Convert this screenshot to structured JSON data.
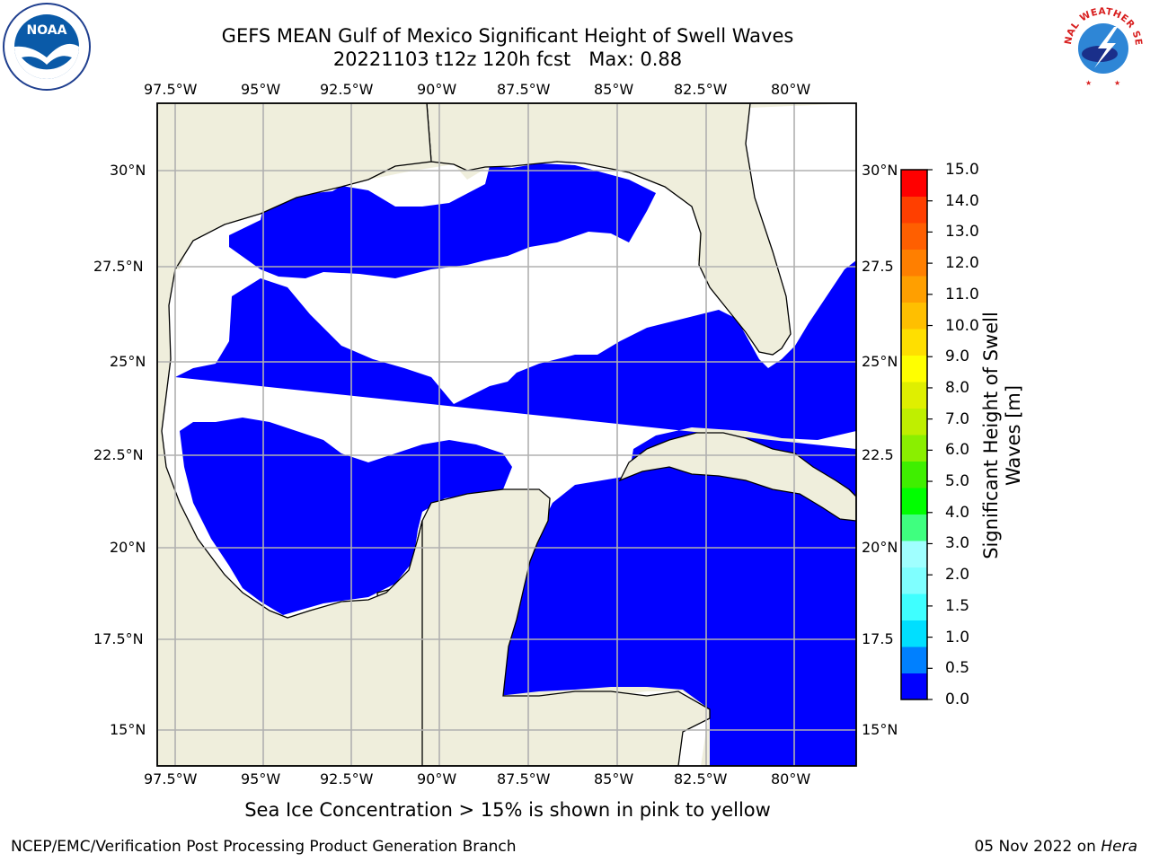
{
  "header": {
    "title": "GEFS MEAN Gulf of Mexico Significant Height of Swell Waves",
    "subtitle": "20221103 t12z 120h fcst   Max: 0.88"
  },
  "logos": {
    "left": {
      "name": "noaa-logo",
      "text": "NOAA",
      "ring_text": "NATIONAL OCEANIC AND ATMOSPHERIC ADMINISTRATION · U.S. DEPARTMENT OF COMMERCE"
    },
    "right": {
      "name": "nws-logo",
      "ring_text": "NATIONAL WEATHER SERVICE"
    }
  },
  "map": {
    "lon_labels": [
      "97.5°W",
      "95°W",
      "92.5°W",
      "90°W",
      "87.5°W",
      "85°W",
      "82.5°W",
      "80°W"
    ],
    "lat_labels": [
      "30°N",
      "27.5°N",
      "25°N",
      "22.5°N",
      "20°N",
      "17.5°N",
      "15°N"
    ],
    "lat_labels_right": [
      "30°N",
      "27.5",
      "25°N",
      "22.5",
      "20°N",
      "17.5",
      "15°N"
    ],
    "land_color": "#efeedc",
    "ocean_color": "#0000ff",
    "no_data_color": "#ffffff"
  },
  "colorbar": {
    "label": "Significant Height of Swell Waves [m]",
    "label_lines": [
      "Significant Height of Swell",
      "Waves [m]"
    ],
    "ticks": [
      "15.0",
      "14.0",
      "13.0",
      "12.0",
      "11.0",
      "10.0",
      "9.0",
      "8.0",
      "7.0",
      "6.0",
      "5.0",
      "4.0",
      "3.0",
      "2.0",
      "1.5",
      "1.0",
      "0.5",
      "0.0"
    ],
    "colors": [
      "#0000ff",
      "#0080ff",
      "#00dfff",
      "#3fffff",
      "#7fffff",
      "#a0ffff",
      "#3fff7f",
      "#00ff00",
      "#3fef00",
      "#8aef00",
      "#bfef00",
      "#dfef00",
      "#ffff00",
      "#ffdf00",
      "#ffbf00",
      "#ff9f00",
      "#ff7f00",
      "#ff5f00",
      "#ff3f00",
      "#ff0000"
    ]
  },
  "footer": {
    "note": "Sea Ice Concentration > 15% is shown in pink to yellow",
    "credit": "NCEP/EMC/Verification Post Processing Product Generation Branch",
    "date": "05 Nov 2022 on ",
    "machine": "Hera"
  }
}
